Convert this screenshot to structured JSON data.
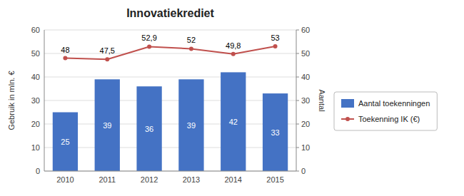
{
  "chart_data": {
    "type": "bar",
    "title": "Innovatiekrediet",
    "categories": [
      "2010",
      "2011",
      "2012",
      "2013",
      "2014",
      "2015"
    ],
    "series": [
      {
        "name": "Aantal toekenningen",
        "type": "bar",
        "color": "#4472C4",
        "values": [
          25,
          39,
          36,
          39,
          42,
          33
        ],
        "data_labels": true
      },
      {
        "name": "Toekenning IK (€)",
        "type": "line",
        "color": "#C0504D",
        "axis": "y2",
        "marker": "circle",
        "values": [
          48,
          47.5,
          52.9,
          52,
          49.8,
          53
        ],
        "value_labels": [
          "48",
          "47,5",
          "52,9",
          "52",
          "49,8",
          "53"
        ],
        "data_labels": true
      }
    ],
    "ylabel": "Gebruik in mln. €",
    "y2label": "Aantal",
    "ylim": [
      0,
      60
    ],
    "yticks": [
      0,
      10,
      20,
      30,
      40,
      50,
      60
    ],
    "y2lim": [
      0,
      60
    ],
    "y2ticks": [
      0,
      10,
      20,
      30,
      40,
      50,
      60
    ],
    "grid": true,
    "legend": "right"
  }
}
